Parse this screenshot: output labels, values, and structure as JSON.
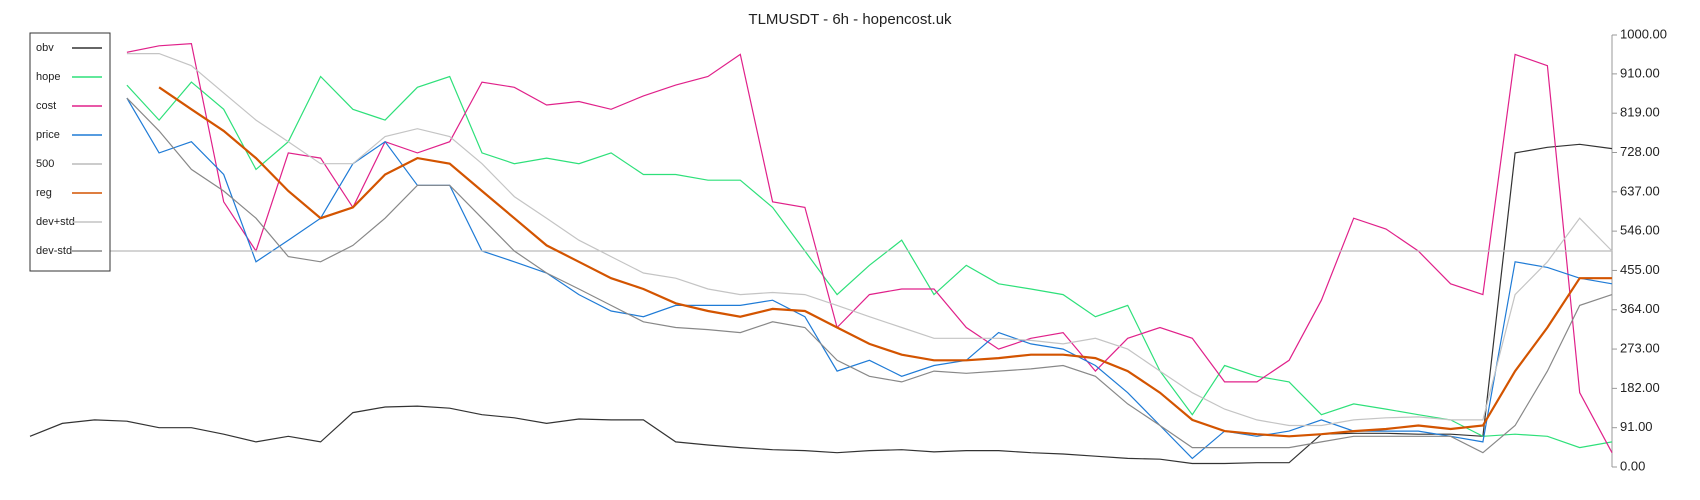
{
  "chart_data": {
    "type": "line",
    "title": "TLMUSDT - 6h - hopencost.uk",
    "categories": [
      null,
      null,
      null,
      null,
      null,
      null,
      null,
      null,
      null,
      null,
      null,
      null,
      null,
      null,
      null,
      null,
      null,
      null,
      null,
      null,
      null,
      null,
      null,
      null,
      null,
      null,
      null,
      null,
      null,
      null,
      null,
      null,
      null,
      null,
      null,
      null,
      null,
      null,
      null,
      null,
      null,
      null,
      null,
      null,
      null,
      null,
      null,
      null,
      null,
      null
    ],
    "ylim": [
      0,
      1000
    ],
    "yticks": [
      {
        "value": 0,
        "label": "0.00"
      },
      {
        "value": 91,
        "label": "91.00"
      },
      {
        "value": 182,
        "label": "182.00"
      },
      {
        "value": 273,
        "label": "273.00"
      },
      {
        "value": 364,
        "label": "364.00"
      },
      {
        "value": 455,
        "label": "455.00"
      },
      {
        "value": 546,
        "label": "546.00"
      },
      {
        "value": 637,
        "label": "637.00"
      },
      {
        "value": 728,
        "label": "728.00"
      },
      {
        "value": 819,
        "label": "819.00"
      },
      {
        "value": 910,
        "label": "910.00"
      },
      {
        "value": 1000,
        "label": "1000.00"
      }
    ],
    "legend": "upper left",
    "series": [
      {
        "name": "obv",
        "color": "#333333",
        "values": [
          71,
          101,
          109,
          106,
          91,
          91,
          76,
          58,
          71,
          58,
          126,
          139,
          141,
          136,
          121,
          114,
          101,
          111,
          109,
          109,
          58,
          51,
          45,
          40,
          38,
          33,
          38,
          40,
          35,
          38,
          38,
          33,
          30,
          25,
          20,
          18,
          8,
          8,
          10,
          10,
          76,
          78,
          78,
          76,
          76,
          71,
          727,
          740,
          747,
          737
        ]
      },
      {
        "name": "hope",
        "color": "#2ee07a",
        "values": [
          null,
          null,
          null,
          884,
          803,
          891,
          828,
          689,
          753,
          904,
          828,
          803,
          879,
          904,
          727,
          702,
          715,
          702,
          727,
          677,
          677,
          664,
          664,
          601,
          500,
          399,
          467,
          525,
          399,
          467,
          424,
          412,
          399,
          348,
          374,
          222,
          121,
          235,
          210,
          197,
          121,
          146,
          134,
          121,
          109,
          71,
          76,
          71,
          45,
          58
        ]
      },
      {
        "name": "cost",
        "color": "#e0218a",
        "values": [
          null,
          null,
          null,
          960,
          975,
          980,
          614,
          500,
          727,
          715,
          601,
          753,
          727,
          753,
          891,
          879,
          838,
          846,
          828,
          859,
          884,
          904,
          955,
          614,
          601,
          323,
          399,
          412,
          412,
          323,
          273,
          298,
          311,
          222,
          298,
          323,
          298,
          197,
          197,
          247,
          386,
          576,
          551,
          500,
          424,
          399,
          955,
          929,
          172,
          33
        ]
      },
      {
        "name": "price",
        "color": "#1f7bd6",
        "values": [
          null,
          null,
          null,
          854,
          727,
          753,
          677,
          475,
          525,
          576,
          702,
          753,
          652,
          652,
          500,
          475,
          449,
          399,
          361,
          348,
          374,
          374,
          374,
          386,
          348,
          222,
          247,
          210,
          235,
          247,
          311,
          285,
          273,
          235,
          172,
          96,
          20,
          83,
          71,
          83,
          109,
          83,
          83,
          83,
          71,
          58,
          475,
          462,
          437,
          424
        ]
      },
      {
        "name": "500",
        "color": "#bbbbbb",
        "values": [
          500,
          500,
          500,
          500,
          500,
          500,
          500,
          500,
          500,
          500,
          500,
          500,
          500,
          500,
          500,
          500,
          500,
          500,
          500,
          500,
          500,
          500,
          500,
          500,
          500,
          500,
          500,
          500,
          500,
          500,
          500,
          500,
          500,
          500,
          500,
          500,
          500,
          500,
          500,
          500,
          500,
          500,
          500,
          500,
          500,
          500,
          500,
          500,
          500,
          500
        ]
      },
      {
        "name": "reg",
        "color": "#d35400",
        "values": [
          null,
          null,
          null,
          null,
          879,
          828,
          778,
          715,
          639,
          576,
          601,
          677,
          715,
          702,
          639,
          576,
          513,
          475,
          437,
          412,
          379,
          361,
          348,
          366,
          361,
          323,
          285,
          260,
          247,
          247,
          252,
          260,
          260,
          252,
          222,
          172,
          109,
          83,
          76,
          71,
          76,
          83,
          88,
          96,
          88,
          96,
          222,
          323,
          437,
          437
        ]
      },
      {
        "name": "dev+std",
        "color": "#c4c4c4",
        "values": [
          null,
          null,
          null,
          957,
          957,
          929,
          866,
          803,
          753,
          702,
          702,
          765,
          783,
          765,
          702,
          626,
          576,
          525,
          487,
          449,
          437,
          412,
          399,
          404,
          399,
          374,
          348,
          323,
          298,
          298,
          298,
          293,
          285,
          298,
          273,
          222,
          172,
          134,
          109,
          96,
          96,
          109,
          114,
          116,
          109,
          109,
          399,
          475,
          576,
          500
        ]
      },
      {
        "name": "dev-std",
        "color": "#888888",
        "values": [
          null,
          null,
          null,
          854,
          778,
          689,
          639,
          576,
          487,
          475,
          513,
          576,
          652,
          652,
          576,
          500,
          449,
          412,
          374,
          336,
          323,
          318,
          311,
          336,
          323,
          247,
          210,
          197,
          222,
          217,
          222,
          227,
          235,
          210,
          146,
          96,
          45,
          45,
          45,
          45,
          58,
          71,
          71,
          71,
          71,
          33,
          96,
          222,
          374,
          399
        ]
      }
    ]
  }
}
